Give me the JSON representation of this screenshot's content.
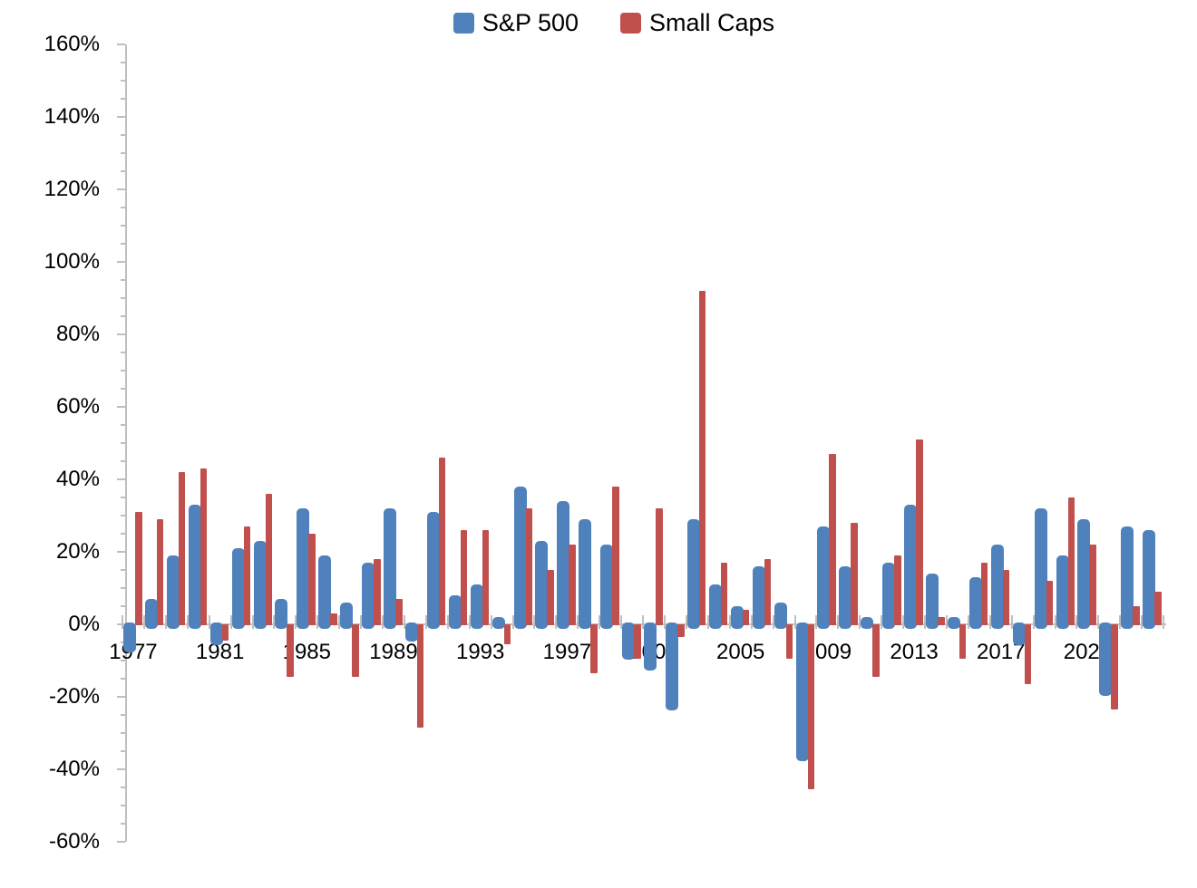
{
  "chart_data": {
    "type": "bar",
    "title": "",
    "xlabel": "",
    "ylabel": "",
    "unit": "percent",
    "grid": false,
    "legend_position": "top-center",
    "axis_color": "#bfbfbf",
    "label_color": "#000000",
    "ylim": [
      -60,
      160
    ],
    "ytick_step_major": 20,
    "ytick_step_minor": 5,
    "ytick_labels": [
      "160%",
      "140%",
      "120%",
      "100%",
      "80%",
      "60%",
      "40%",
      "20%",
      "0%",
      "-20%",
      "-40%",
      "-60%"
    ],
    "xtick_labels": [
      "1977",
      "1981",
      "1985",
      "1989",
      "1993",
      "1997",
      "2001",
      "2005",
      "2009",
      "2013",
      "2017",
      "2021"
    ],
    "categories": [
      1977,
      1978,
      1979,
      1980,
      1981,
      1982,
      1983,
      1984,
      1985,
      1986,
      1987,
      1988,
      1989,
      1990,
      1991,
      1992,
      1993,
      1994,
      1995,
      1996,
      1997,
      1998,
      1999,
      2000,
      2001,
      2002,
      2003,
      2004,
      2005,
      2006,
      2007,
      2008,
      2009,
      2010,
      2011,
      2012,
      2013,
      2014,
      2015,
      2016,
      2017,
      2018,
      2019,
      2020,
      2021,
      2022,
      2023,
      2024
    ],
    "series": [
      {
        "name": "S&P 500",
        "color": "#4f81bd",
        "values": [
          -7,
          7,
          19,
          33,
          -5,
          21,
          23,
          7,
          32,
          19,
          6,
          17,
          32,
          -4,
          31,
          8,
          11,
          2,
          38,
          23,
          34,
          29,
          22,
          -9,
          -12,
          -23,
          29,
          11,
          5,
          16,
          6,
          -37,
          27,
          16,
          2,
          17,
          33,
          14,
          2,
          13,
          22,
          -5,
          32,
          19,
          29,
          -19,
          27,
          26
        ]
      },
      {
        "name": "Small Caps",
        "color": "#c0504d",
        "values": [
          31,
          29,
          42,
          43,
          -4,
          27,
          36,
          -14,
          25,
          3,
          -14,
          18,
          7,
          -28,
          46,
          26,
          26,
          -5,
          32,
          15,
          22,
          -13,
          38,
          -9,
          32,
          -3,
          92,
          17,
          4,
          18,
          -9,
          -45,
          47,
          28,
          -14,
          19,
          51,
          2,
          -9,
          17,
          15,
          -16,
          12,
          35,
          22,
          -23,
          5,
          9
        ]
      }
    ]
  }
}
